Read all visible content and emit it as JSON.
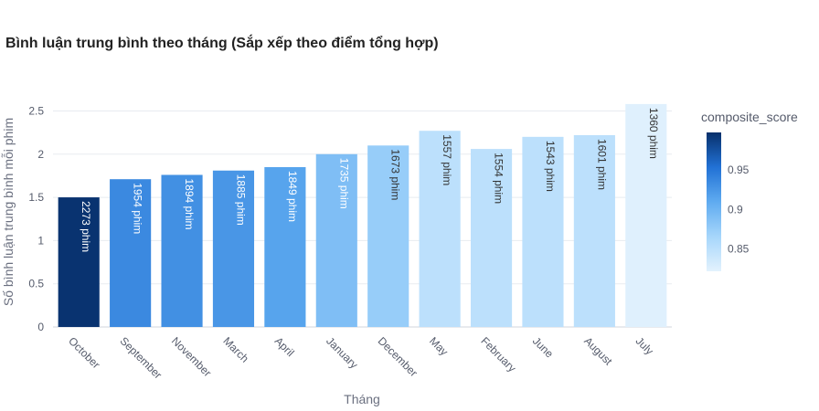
{
  "chart_data": {
    "type": "bar",
    "title": "Bình luận trung bình theo tháng (Sắp xếp theo điểm tổng hợp)",
    "xlabel": "Tháng",
    "ylabel": "Số bình luận trung bình mỗi phim",
    "ylim": [
      0,
      2.6
    ],
    "yticks": [
      0,
      0.5,
      1,
      1.5,
      2,
      2.5
    ],
    "ytick_labels": [
      "0",
      "0.5",
      "1",
      "1.5",
      "2",
      "2.5"
    ],
    "categories": [
      "October",
      "September",
      "November",
      "March",
      "April",
      "January",
      "December",
      "May",
      "February",
      "June",
      "August",
      "July"
    ],
    "values": [
      1.5,
      1.71,
      1.76,
      1.81,
      1.85,
      2.0,
      2.1,
      2.27,
      2.06,
      2.2,
      2.22,
      2.58
    ],
    "bar_labels": [
      "2273 phim",
      "1954 phim",
      "1894 phim",
      "1885 phim",
      "1849 phim",
      "1735 phim",
      "1673 phim",
      "1557 phim",
      "1554 phim",
      "1543 phim",
      "1601 phim",
      "1360 phim"
    ],
    "composite_score": [
      0.995,
      0.935,
      0.93,
      0.925,
      0.915,
      0.89,
      0.875,
      0.85,
      0.85,
      0.85,
      0.85,
      0.825
    ],
    "colorbar": {
      "title": "composite_score",
      "range": [
        0.822,
        0.997
      ],
      "ticks": [
        0.85,
        0.9,
        0.95
      ],
      "tick_labels": [
        "0.85",
        "0.9",
        "0.95"
      ]
    },
    "colors": {
      "scale_dark": "#08306b",
      "scale_mid": "#2171d5",
      "scale_light": "#e3f2fd",
      "grid": "#e8ebf0",
      "tick_text": "#555b6b"
    },
    "grid": true
  }
}
